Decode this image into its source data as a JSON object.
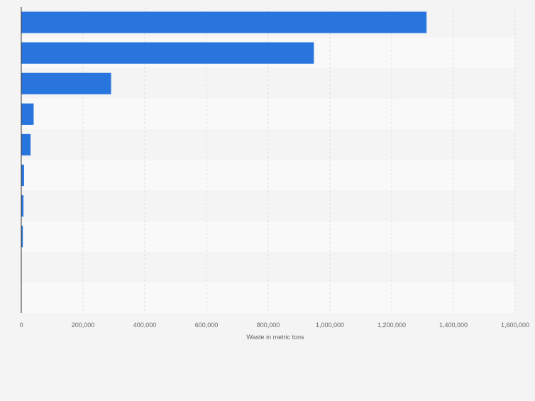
{
  "chart_data": {
    "type": "bar",
    "orientation": "horizontal",
    "title": "",
    "ylabel": "",
    "xlabel": "Waste in metric tons",
    "xlim": [
      0,
      1600000
    ],
    "xticks": [
      0,
      200000,
      400000,
      600000,
      800000,
      1000000,
      1200000,
      1400000,
      1600000
    ],
    "xtick_labels": [
      "0",
      "200,000",
      "400,000",
      "600,000",
      "800,000",
      "1,000,000",
      "1,200,000",
      "1,400,000",
      "1,600,000"
    ],
    "categories": [
      "",
      "",
      "",
      "",
      "",
      "",
      "",
      "",
      "",
      ""
    ],
    "values": [
      1313000,
      948000,
      291000,
      40000,
      30000,
      9000,
      7000,
      5000,
      0,
      0
    ],
    "grid": true,
    "bar_color": "#2876dd",
    "band_colors": [
      "#f4f4f4",
      "#f9f9f9"
    ],
    "gridline_color": "#dedede"
  }
}
